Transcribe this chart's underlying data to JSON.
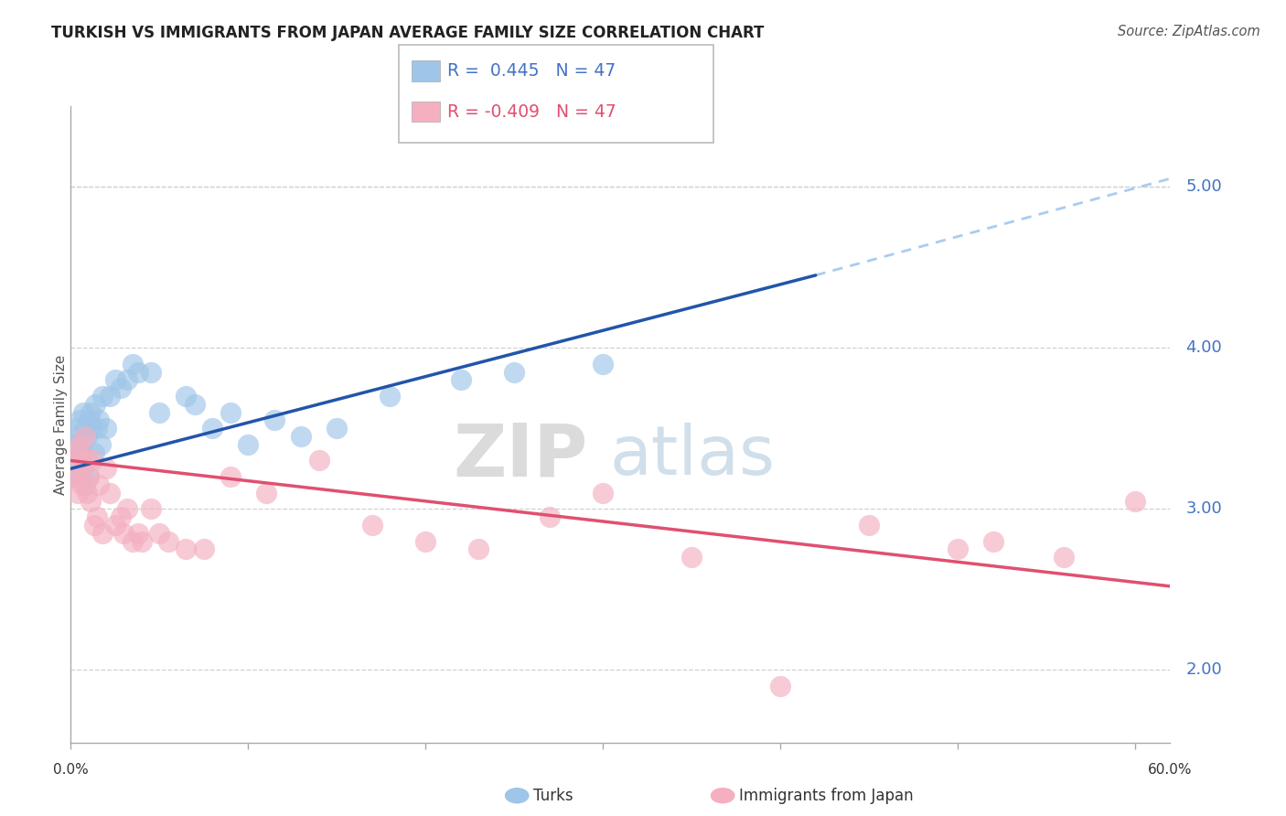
{
  "title": "TURKISH VS IMMIGRANTS FROM JAPAN AVERAGE FAMILY SIZE CORRELATION CHART",
  "source": "Source: ZipAtlas.com",
  "ylabel": "Average Family Size",
  "r_turks": 0.445,
  "n_turks": 47,
  "r_japan": -0.409,
  "n_japan": 47,
  "yticks": [
    2.0,
    3.0,
    4.0,
    5.0
  ],
  "xlim": [
    0.0,
    0.62
  ],
  "ylim": [
    1.55,
    5.5
  ],
  "watermark_zip": "ZIP",
  "watermark_atlas": "atlas",
  "turks_color": "#9fc5e8",
  "japan_color": "#f4afc0",
  "trend_turks_color": "#2255aa",
  "trend_japan_color": "#e05070",
  "trend_ext_color": "#aaccee",
  "background_color": "#ffffff",
  "grid_color": "#d0d0d0",
  "turks_x": [
    0.001,
    0.002,
    0.003,
    0.003,
    0.004,
    0.004,
    0.005,
    0.005,
    0.006,
    0.006,
    0.007,
    0.007,
    0.008,
    0.008,
    0.009,
    0.009,
    0.01,
    0.01,
    0.011,
    0.012,
    0.013,
    0.014,
    0.015,
    0.016,
    0.017,
    0.018,
    0.02,
    0.022,
    0.025,
    0.028,
    0.032,
    0.035,
    0.038,
    0.045,
    0.05,
    0.065,
    0.07,
    0.08,
    0.09,
    0.1,
    0.115,
    0.13,
    0.15,
    0.18,
    0.22,
    0.25,
    0.3
  ],
  "turks_y": [
    3.3,
    3.4,
    3.5,
    3.2,
    3.45,
    3.3,
    3.55,
    3.2,
    3.4,
    3.35,
    3.6,
    3.25,
    3.5,
    3.15,
    3.45,
    3.3,
    3.55,
    3.2,
    3.6,
    3.5,
    3.35,
    3.65,
    3.5,
    3.55,
    3.4,
    3.7,
    3.5,
    3.7,
    3.8,
    3.75,
    3.8,
    3.9,
    3.85,
    3.85,
    3.6,
    3.7,
    3.65,
    3.5,
    3.6,
    3.4,
    3.55,
    3.45,
    3.5,
    3.7,
    3.8,
    3.85,
    3.9
  ],
  "japan_x": [
    0.001,
    0.002,
    0.003,
    0.004,
    0.005,
    0.005,
    0.006,
    0.007,
    0.008,
    0.009,
    0.009,
    0.01,
    0.011,
    0.012,
    0.013,
    0.015,
    0.016,
    0.018,
    0.02,
    0.022,
    0.025,
    0.028,
    0.03,
    0.032,
    0.035,
    0.038,
    0.04,
    0.045,
    0.05,
    0.055,
    0.065,
    0.075,
    0.09,
    0.11,
    0.14,
    0.17,
    0.2,
    0.23,
    0.27,
    0.3,
    0.35,
    0.4,
    0.45,
    0.5,
    0.52,
    0.56,
    0.6
  ],
  "japan_y": [
    3.3,
    3.2,
    3.35,
    3.1,
    3.2,
    3.4,
    3.15,
    3.3,
    3.45,
    3.1,
    3.3,
    3.2,
    3.05,
    3.3,
    2.9,
    2.95,
    3.15,
    2.85,
    3.25,
    3.1,
    2.9,
    2.95,
    2.85,
    3.0,
    2.8,
    2.85,
    2.8,
    3.0,
    2.85,
    2.8,
    2.75,
    2.75,
    3.2,
    3.1,
    3.3,
    2.9,
    2.8,
    2.75,
    2.95,
    3.1,
    2.7,
    1.9,
    2.9,
    2.75,
    2.8,
    2.7,
    3.05
  ],
  "trend_turks_x0": 0.0,
  "trend_turks_y0": 3.25,
  "trend_turks_x1": 0.42,
  "trend_turks_y1": 4.45,
  "trend_ext_x0": 0.42,
  "trend_ext_y0": 4.45,
  "trend_ext_x1": 0.62,
  "trend_ext_y1": 5.05,
  "trend_japan_x0": 0.0,
  "trend_japan_y0": 3.3,
  "trend_japan_x1": 0.62,
  "trend_japan_y1": 2.52
}
